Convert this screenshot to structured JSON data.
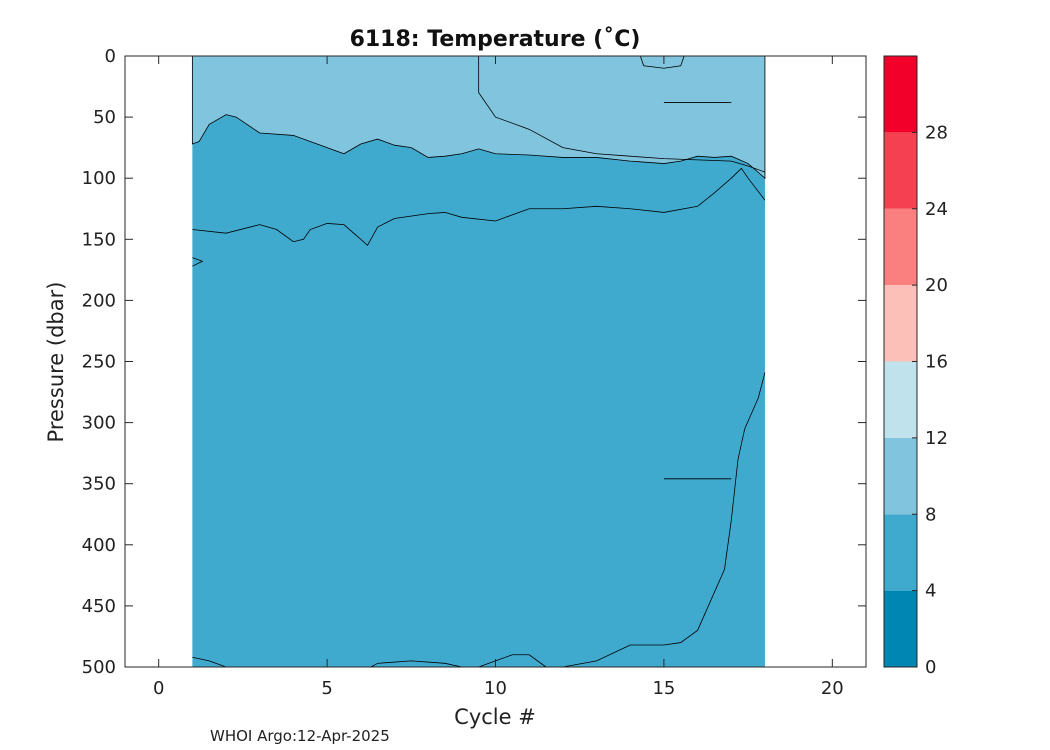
{
  "chart_data": {
    "type": "contour",
    "title": "6118:  Temperature (˚C)",
    "xlabel": "Cycle #",
    "ylabel": "Pressure (dbar)",
    "xlim": [
      -1,
      21
    ],
    "ylim": [
      500,
      0
    ],
    "x_ticks": [
      0,
      5,
      10,
      15,
      20
    ],
    "y_ticks": [
      0,
      50,
      100,
      150,
      200,
      250,
      300,
      350,
      400,
      450,
      500
    ],
    "data_extent": {
      "x": [
        1,
        18
      ],
      "y": [
        0,
        500
      ]
    },
    "colorbar": {
      "range": [
        0,
        32
      ],
      "ticks": [
        0,
        4,
        8,
        12,
        16,
        20,
        24,
        28
      ],
      "levels": [
        {
          "from": 0,
          "to": 4,
          "color": "#0086b3"
        },
        {
          "from": 4,
          "to": 8,
          "color": "#40a9ce"
        },
        {
          "from": 8,
          "to": 12,
          "color": "#80c4de"
        },
        {
          "from": 12,
          "to": 16,
          "color": "#c0e2ec"
        },
        {
          "from": 16,
          "to": 20,
          "color": "#fdc0b8"
        },
        {
          "from": 20,
          "to": 24,
          "color": "#fa8080"
        },
        {
          "from": 24,
          "to": 28,
          "color": "#f44050"
        },
        {
          "from": 28,
          "to": 32,
          "color": "#f2002a"
        }
      ]
    },
    "warm_layer_boundary": [
      [
        1,
        72
      ],
      [
        1.2,
        70
      ],
      [
        1.5,
        56
      ],
      [
        2,
        48
      ],
      [
        2.3,
        50
      ],
      [
        3,
        63
      ],
      [
        4,
        65
      ],
      [
        5,
        75
      ],
      [
        5.5,
        80
      ],
      [
        6,
        72
      ],
      [
        6.5,
        68
      ],
      [
        7,
        73
      ],
      [
        7.5,
        75
      ],
      [
        8,
        83
      ],
      [
        8.5,
        82
      ],
      [
        9,
        80
      ],
      [
        9.5,
        76
      ],
      [
        10,
        80
      ],
      [
        11,
        81
      ],
      [
        12,
        83
      ],
      [
        13,
        83
      ],
      [
        14,
        86
      ],
      [
        15,
        88
      ],
      [
        15.5,
        86
      ],
      [
        16,
        82
      ],
      [
        16.5,
        83
      ],
      [
        17,
        82
      ],
      [
        17.5,
        88
      ],
      [
        18,
        100
      ]
    ],
    "contour_lines": [
      [
        [
          1,
          142
        ],
        [
          2,
          145
        ],
        [
          3,
          138
        ],
        [
          3.5,
          142
        ],
        [
          4,
          152
        ],
        [
          4.3,
          150
        ],
        [
          4.5,
          142
        ],
        [
          5,
          137
        ],
        [
          5.5,
          138
        ],
        [
          6,
          150
        ],
        [
          6.2,
          155
        ],
        [
          6.5,
          140
        ],
        [
          7,
          133
        ],
        [
          8,
          129
        ],
        [
          8.5,
          128
        ],
        [
          9,
          132
        ],
        [
          10,
          135
        ],
        [
          11,
          125
        ],
        [
          12,
          125
        ],
        [
          13,
          123
        ],
        [
          14,
          125
        ],
        [
          15,
          128
        ],
        [
          16,
          123
        ],
        [
          16.5,
          112
        ],
        [
          17,
          100
        ],
        [
          17.3,
          92
        ],
        [
          17.5,
          100
        ],
        [
          18,
          118
        ]
      ],
      [
        [
          1,
          165
        ],
        [
          1.3,
          168
        ],
        [
          1,
          172
        ]
      ],
      [
        [
          9.5,
          0
        ],
        [
          9.5,
          30
        ],
        [
          10,
          50
        ],
        [
          11,
          60
        ],
        [
          12,
          75
        ],
        [
          13,
          80
        ],
        [
          14,
          82
        ],
        [
          15,
          84
        ],
        [
          16,
          85
        ],
        [
          17,
          86
        ],
        [
          17.5,
          90
        ],
        [
          18,
          95
        ]
      ],
      [
        [
          14.3,
          0
        ],
        [
          14.4,
          8
        ],
        [
          15,
          10
        ],
        [
          15.5,
          8
        ],
        [
          15.6,
          0
        ]
      ],
      [
        [
          18,
          259
        ],
        [
          17.8,
          280
        ],
        [
          17.4,
          305
        ],
        [
          17.2,
          330
        ],
        [
          17,
          380
        ],
        [
          16.8,
          420
        ],
        [
          16.4,
          445
        ],
        [
          16,
          470
        ],
        [
          15.5,
          480
        ],
        [
          15,
          482
        ],
        [
          14,
          482
        ],
        [
          13,
          495
        ],
        [
          12,
          500
        ]
      ],
      [
        [
          11.5,
          500
        ],
        [
          11,
          490
        ],
        [
          10.5,
          490
        ],
        [
          10,
          495
        ],
        [
          9.5,
          500
        ]
      ],
      [
        [
          9,
          500
        ],
        [
          8.5,
          497
        ],
        [
          7.5,
          495
        ],
        [
          6.5,
          497
        ],
        [
          6.3,
          500
        ]
      ],
      [
        [
          1,
          492
        ],
        [
          1.5,
          495
        ],
        [
          2,
          500
        ]
      ],
      [
        [
          15,
          38
        ],
        [
          17,
          38
        ]
      ],
      [
        [
          15,
          346
        ],
        [
          17,
          346
        ]
      ]
    ],
    "footer": "WHOI Argo:12-Apr-2025"
  }
}
